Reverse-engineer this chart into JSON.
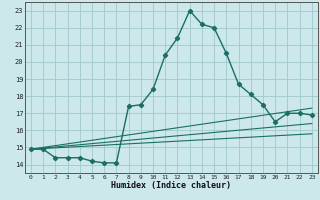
{
  "xlabel": "Humidex (Indice chaleur)",
  "background_color": "#cde8ea",
  "grid_color": "#a0c8cc",
  "line_color": "#1a6e66",
  "xlim": [
    -0.5,
    23.5
  ],
  "ylim": [
    13.5,
    23.5
  ],
  "xticks": [
    0,
    1,
    2,
    3,
    4,
    5,
    6,
    7,
    8,
    9,
    10,
    11,
    12,
    13,
    14,
    15,
    16,
    17,
    18,
    19,
    20,
    21,
    22,
    23
  ],
  "yticks": [
    14,
    15,
    16,
    17,
    18,
    19,
    20,
    21,
    22,
    23
  ],
  "main_line": {
    "x": [
      0,
      1,
      2,
      3,
      4,
      5,
      6,
      7,
      8,
      9,
      10,
      11,
      12,
      13,
      14,
      15,
      16,
      17,
      18,
      19,
      20,
      21,
      22,
      23
    ],
    "y": [
      14.9,
      14.9,
      14.4,
      14.4,
      14.4,
      14.2,
      14.1,
      14.1,
      17.4,
      17.5,
      18.4,
      20.4,
      21.4,
      23.0,
      22.2,
      22.0,
      20.5,
      18.7,
      18.1,
      17.5,
      16.5,
      17.0,
      17.0,
      16.9
    ]
  },
  "trend_lines": [
    {
      "x": [
        0,
        23
      ],
      "y": [
        14.9,
        17.3
      ]
    },
    {
      "x": [
        0,
        23
      ],
      "y": [
        14.9,
        16.4
      ]
    },
    {
      "x": [
        0,
        23
      ],
      "y": [
        14.9,
        15.8
      ]
    }
  ]
}
